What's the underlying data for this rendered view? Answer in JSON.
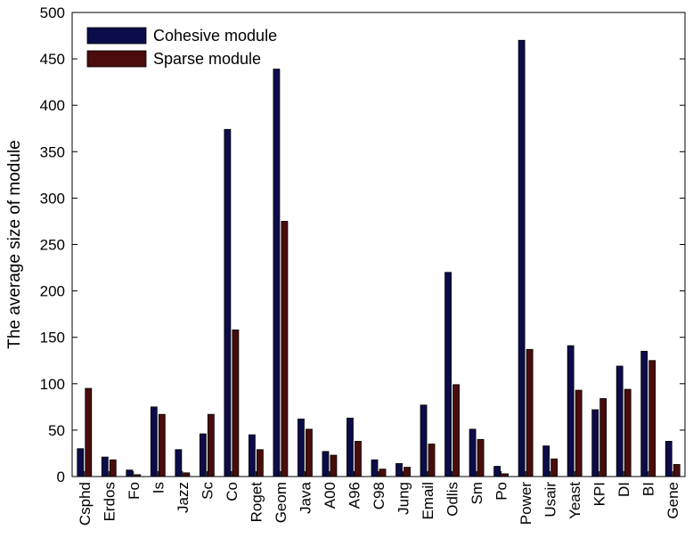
{
  "chart_data": {
    "type": "bar",
    "ylabel": "The average size of module",
    "xlabel": "",
    "ylim": [
      0,
      500
    ],
    "yticks": [
      0,
      50,
      100,
      150,
      200,
      250,
      300,
      350,
      400,
      450,
      500
    ],
    "legend_position": "top-left",
    "grid": false,
    "categories": [
      "Csphd",
      "Erdos",
      "Fo",
      "Is",
      "Jazz",
      "Sc",
      "Co",
      "Roget",
      "Geom",
      "Java",
      "A00",
      "A96",
      "C98",
      "Jung",
      "Email",
      "Odlis",
      "Sm",
      "Po",
      "Power",
      "Usair",
      "Yeast",
      "KPI",
      "DI",
      "BI",
      "Gene"
    ],
    "series": [
      {
        "name": "Cohesive module",
        "color": "#0c0c4a",
        "values": [
          30,
          21,
          7,
          75,
          29,
          46,
          374,
          45,
          439,
          62,
          27,
          63,
          18,
          14,
          77,
          220,
          51,
          11,
          470,
          33,
          141,
          72,
          119,
          135,
          38
        ]
      },
      {
        "name": "Sparse module",
        "color": "#4a0c0c",
        "values": [
          95,
          18,
          2,
          67,
          4,
          67,
          158,
          29,
          275,
          51,
          23,
          38,
          8,
          10,
          35,
          99,
          40,
          3,
          137,
          19,
          93,
          84,
          94,
          125,
          13
        ]
      }
    ]
  }
}
